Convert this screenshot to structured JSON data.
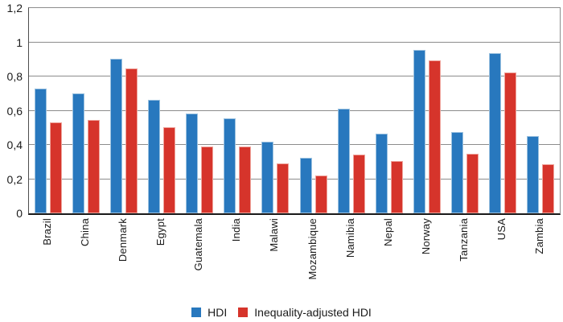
{
  "chart_data": {
    "type": "bar",
    "title": "",
    "xlabel": "",
    "ylabel": "",
    "categories": [
      "Brazil",
      "China",
      "Denmark",
      "Egypt",
      "Guatemala",
      "India",
      "Malawi",
      "Mozambique",
      "Namibia",
      "Nepal",
      "Norway",
      "Tanzania",
      "USA",
      "Zambia"
    ],
    "series": [
      {
        "name": "HDI",
        "color": "#2878BE",
        "border_color": "#9cc2e0",
        "values": [
          0.73,
          0.7,
          0.905,
          0.665,
          0.585,
          0.555,
          0.42,
          0.325,
          0.61,
          0.465,
          0.955,
          0.475,
          0.935,
          0.45
        ]
      },
      {
        "name": "Inequality-adjusted HDI",
        "color": "#D6342B",
        "border_color": "#efa49c",
        "values": [
          0.53,
          0.545,
          0.845,
          0.505,
          0.39,
          0.39,
          0.29,
          0.22,
          0.345,
          0.305,
          0.895,
          0.35,
          0.825,
          0.285
        ]
      }
    ],
    "ylim": [
      0,
      1.2
    ],
    "yticks": [
      1.2,
      1.0,
      0.8,
      0.6,
      0.4,
      0.2,
      0
    ],
    "ytick_labels": [
      "1,2",
      "1",
      "0,8",
      "0,6",
      "0,4",
      "0,2",
      "0"
    ],
    "decimal_separator": ",",
    "grid": true,
    "gridline_color": "#8c8c8c",
    "axis_color": "#1a1a1a",
    "background_color": "#ffffff",
    "legend_position": "bottom",
    "x_label_rotation": 90
  }
}
